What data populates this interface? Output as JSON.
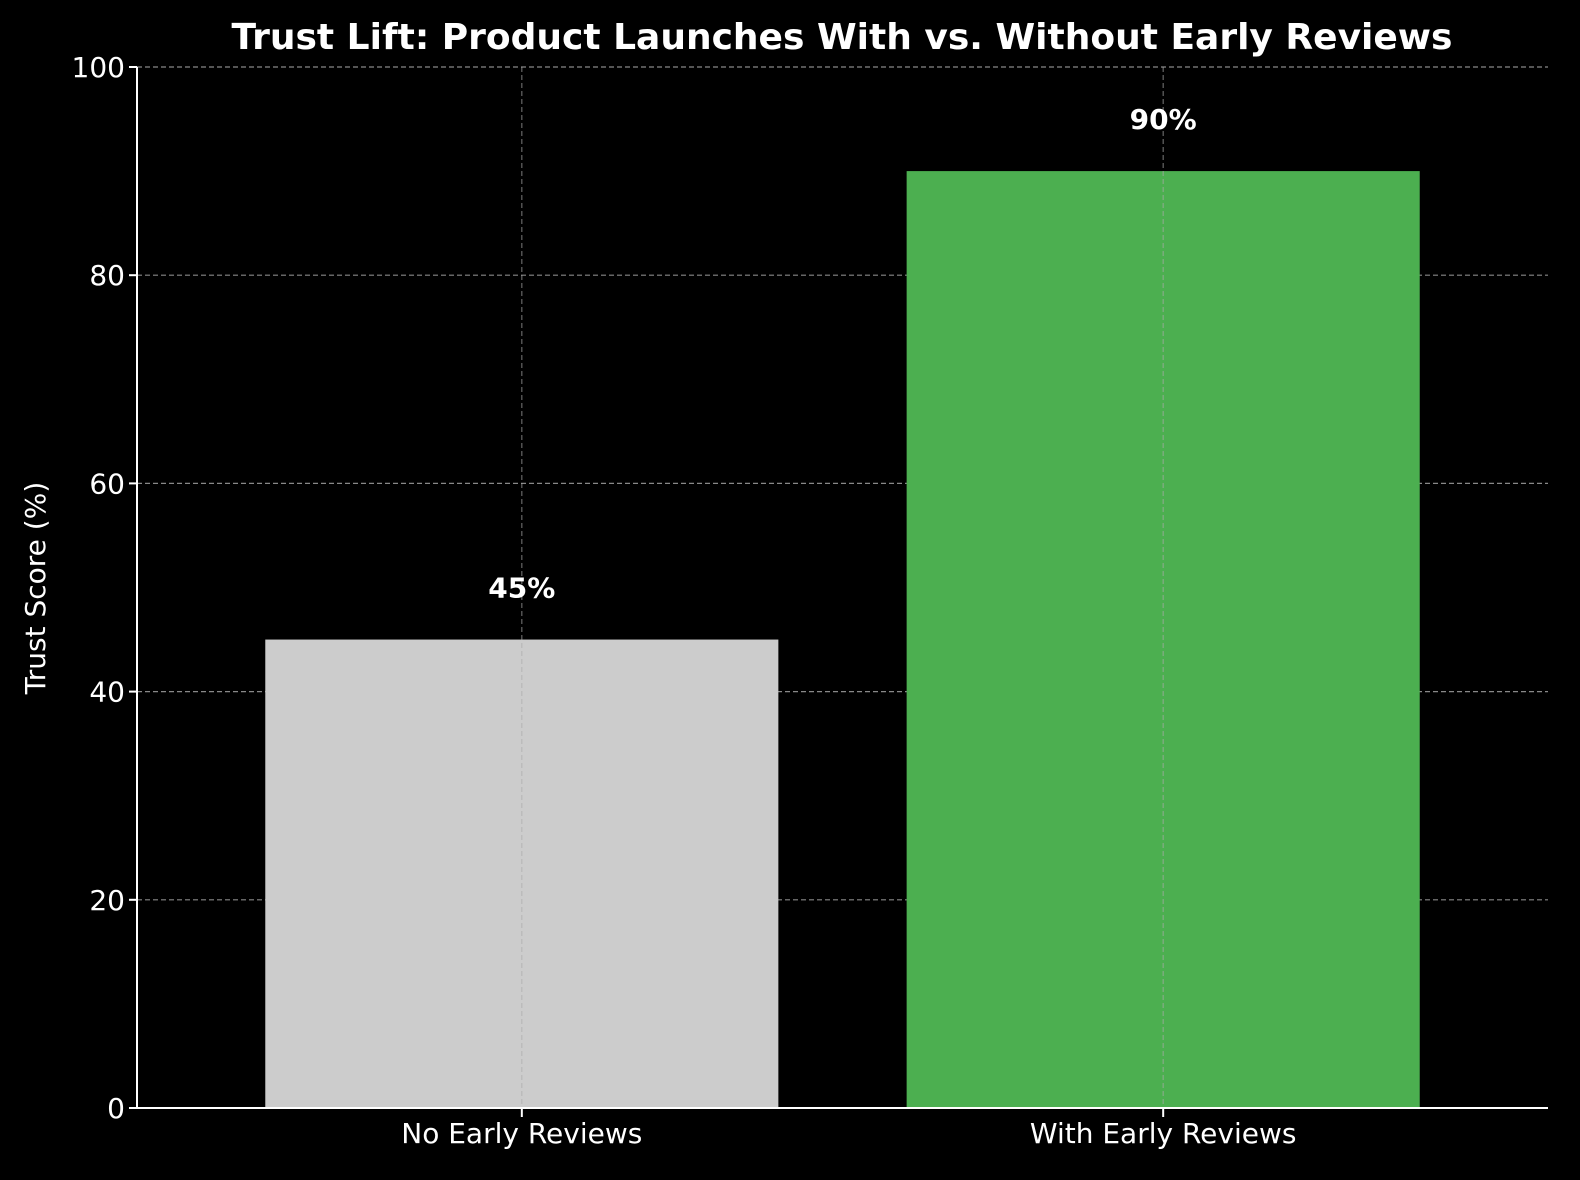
{
  "chart_data": {
    "type": "bar",
    "title": "Trust Lift: Product Launches With vs. Without Early Reviews",
    "xlabel": "",
    "ylabel": "Trust Score (%)",
    "ylim": [
      0,
      100
    ],
    "yticks": [
      0,
      20,
      40,
      60,
      80,
      100
    ],
    "categories": [
      "No Early Reviews",
      "With Early Reviews"
    ],
    "values": [
      45,
      90
    ],
    "data_labels": [
      "45%",
      "90%"
    ],
    "colors": [
      "#cccccc",
      "#4caf50"
    ],
    "grid": true,
    "background": "#000000"
  }
}
